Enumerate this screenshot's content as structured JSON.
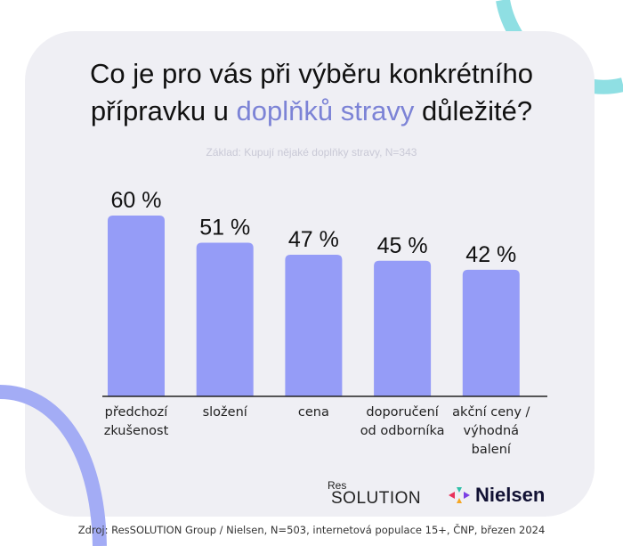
{
  "title": {
    "part1": "Co je pro vás při výběru konkrétního",
    "part2a": "přípravku u ",
    "highlight": "doplňků stravy",
    "part2b": " důležité?"
  },
  "subtitle": "Základ: Kupují nějaké doplňky stravy, N=343",
  "colors": {
    "bar": "#959cf7",
    "highlight": "#7c83d6",
    "card": "#efeff4",
    "curve_top": "#8fdfe3",
    "curve_left": "#a3acf5"
  },
  "chart_data": {
    "type": "bar",
    "categories": [
      [
        "předchozí",
        "zkušenost"
      ],
      [
        "složení"
      ],
      [
        "cena"
      ],
      [
        "doporučení",
        "od odborníka"
      ],
      [
        "akční ceny /",
        "výhodná",
        "balení"
      ]
    ],
    "values": [
      60,
      51,
      47,
      45,
      42
    ],
    "labels": [
      "60 %",
      "51 %",
      "47 %",
      "45 %",
      "42 %"
    ],
    "ylim": [
      0,
      60
    ],
    "grid": false
  },
  "logos": {
    "res": "Res",
    "solution": "SOLUTION",
    "nielsen": "Nielsen"
  },
  "source": "Zdroj: ResSOLUTION Group / Nielsen, N=503, internetová populace 15+, ČNP, březen 2024"
}
